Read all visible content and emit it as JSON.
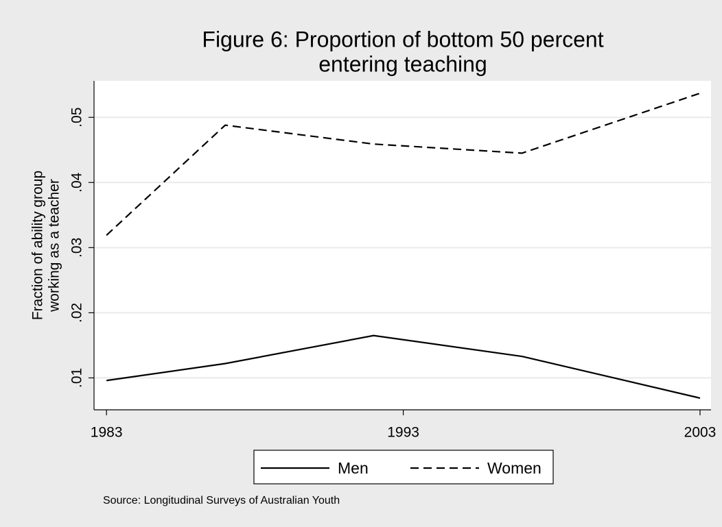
{
  "chart_data": {
    "type": "line",
    "title": [
      "Figure 6: Proportion of bottom 50 percent",
      "entering teaching"
    ],
    "y_label": [
      "Fraction of ability group",
      "working as a teacher"
    ],
    "note": "Source: Longitudinal Surveys of Australian Youth",
    "x": [
      1983,
      1987,
      1992,
      1997,
      2003
    ],
    "series": [
      {
        "name": "Men",
        "color": "#000000",
        "dash": "solid",
        "values": [
          0.0096,
          0.0122,
          0.0165,
          0.0133,
          0.0069
        ]
      },
      {
        "name": "Women",
        "color": "#000000",
        "dash": "dashed",
        "values": [
          0.0319,
          0.0488,
          0.0459,
          0.0445,
          0.0537
        ]
      }
    ],
    "xlim": [
      1982.58,
      2003.37
    ],
    "xticks": [
      1983,
      1993,
      2003
    ],
    "ylim": [
      0.0051,
      0.0556
    ],
    "yticks": [
      {
        "value": 0.01,
        "label": ".01"
      },
      {
        "value": 0.02,
        "label": ".02"
      },
      {
        "value": 0.03,
        "label": ".03"
      },
      {
        "value": 0.04,
        "label": ".04"
      },
      {
        "value": 0.05,
        "label": ".05"
      }
    ],
    "grid": true,
    "legend": "bottom"
  }
}
